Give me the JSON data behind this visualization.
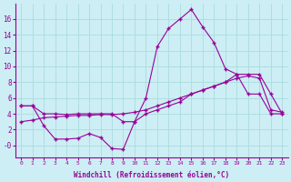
{
  "xlabel": "Windchill (Refroidissement éolien,°C)",
  "bg_color": "#cceef4",
  "line_color": "#990099",
  "grid_color": "#aadddd",
  "ylim": [
    -1.5,
    18.0
  ],
  "xlim": [
    -0.5,
    23.5
  ],
  "yticks": [
    0,
    2,
    4,
    6,
    8,
    10,
    12,
    14,
    16
  ],
  "ytick_labels": [
    "-0",
    "2",
    "4",
    "6",
    "8",
    "10",
    "12",
    "14",
    "16"
  ],
  "xticks": [
    0,
    1,
    2,
    3,
    4,
    5,
    6,
    7,
    8,
    9,
    10,
    11,
    12,
    13,
    14,
    15,
    16,
    17,
    18,
    19,
    20,
    21,
    22,
    23
  ],
  "series1_x": [
    0,
    1,
    2,
    3,
    4,
    5,
    6,
    7,
    8,
    9,
    10,
    11,
    12,
    13,
    14,
    15,
    16,
    17,
    18,
    19,
    20,
    21,
    22,
    23
  ],
  "series1_y": [
    5.0,
    5.0,
    2.5,
    0.8,
    0.8,
    0.9,
    1.5,
    1.0,
    -0.4,
    -0.5,
    3.0,
    6.0,
    12.5,
    14.8,
    16.0,
    17.2,
    15.0,
    13.0,
    9.7,
    9.0,
    6.5,
    6.5,
    4.0,
    4.0
  ],
  "series2_x": [
    0,
    1,
    2,
    3,
    4,
    5,
    6,
    7,
    8,
    9,
    10,
    11,
    12,
    13,
    14,
    15,
    16,
    17,
    18,
    19,
    20,
    21,
    22,
    23
  ],
  "series2_y": [
    5.0,
    5.0,
    4.0,
    4.0,
    3.9,
    4.0,
    4.0,
    4.0,
    4.0,
    3.0,
    3.0,
    4.0,
    4.5,
    5.0,
    5.5,
    6.5,
    7.0,
    7.5,
    8.0,
    9.0,
    9.0,
    9.0,
    6.5,
    4.0
  ],
  "series3_x": [
    0,
    1,
    2,
    3,
    4,
    5,
    6,
    7,
    8,
    9,
    10,
    11,
    12,
    13,
    14,
    15,
    16,
    17,
    18,
    19,
    20,
    21,
    22,
    23
  ],
  "series3_y": [
    3.0,
    3.2,
    3.5,
    3.6,
    3.7,
    3.8,
    3.8,
    3.9,
    3.9,
    4.0,
    4.2,
    4.5,
    5.0,
    5.5,
    6.0,
    6.5,
    7.0,
    7.5,
    8.0,
    8.5,
    8.8,
    8.5,
    4.5,
    4.2
  ]
}
